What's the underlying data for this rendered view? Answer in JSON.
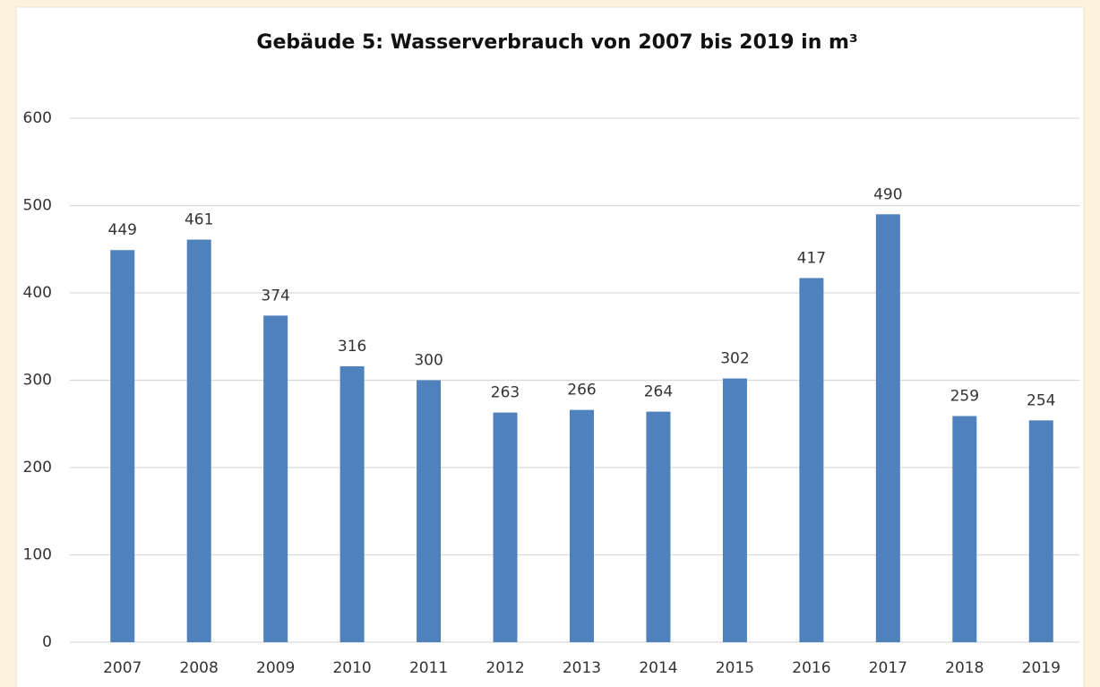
{
  "chart_data": {
    "type": "bar",
    "title": "Gebäude 5: Wasserverbrauch von 2007 bis 2019 in m³",
    "categories": [
      "2007",
      "2008",
      "2009",
      "2010",
      "2011",
      "2012",
      "2013",
      "2014",
      "2015",
      "2016",
      "2017",
      "2018",
      "2019"
    ],
    "values": [
      449,
      461,
      374,
      316,
      300,
      263,
      266,
      264,
      302,
      417,
      490,
      259,
      254
    ],
    "color": "#4f81bd",
    "ylim": [
      0,
      600
    ],
    "yticks": [
      0,
      100,
      200,
      300,
      400,
      500,
      600
    ],
    "grid": true
  }
}
